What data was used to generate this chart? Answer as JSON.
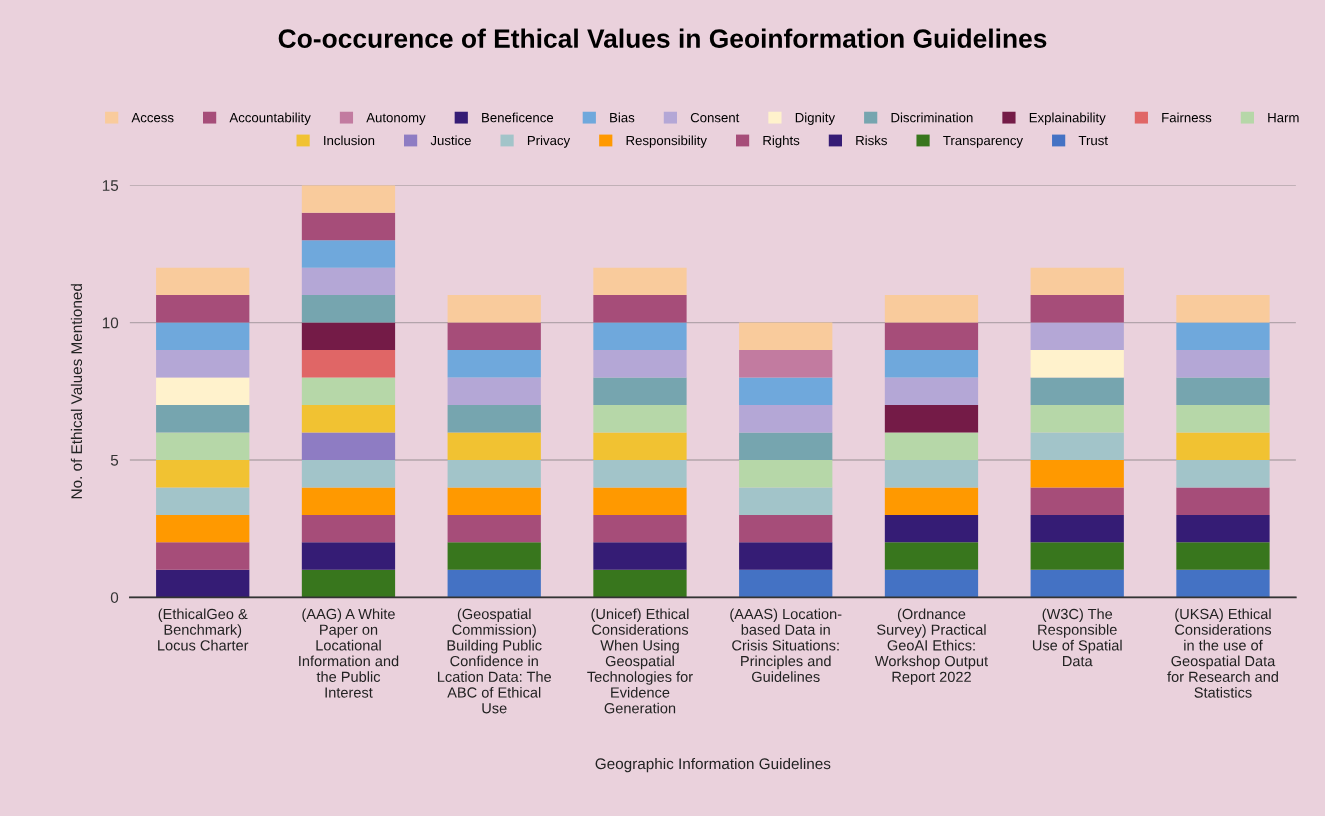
{
  "chart_data": {
    "type": "bar",
    "title": "Co-occurence of Ethical Values in Geoinformation Guidelines",
    "xlabel": "Geographic Information Guidelines",
    "ylabel": "No. of Ethical Values Mentioned",
    "categories": [
      "(EthicalGeo &\nBenchmark)\nLocus Charter",
      "(AAG) A White\nPaper on\nLocational\nInformation and\nthe Public\nInterest",
      "(Geospatial\nCommission)\nBuilding Public\nConfidence in\nLcation Data: The\nABC of Ethical\nUse",
      "(Unicef) Ethical\nConsiderations\nWhen Using\nGeospatial\nTechnologies for\nEvidence\nGeneration",
      "(AAAS) Location-\nbased Data in\nCrisis Situations:\nPrinciples and\nGuidelines",
      "(Ordnance\nSurvey) Practical\nGeoAI Ethics:\nWorkshop Output\nReport 2022",
      "(W3C) The\nResponsible\nUse of Spatial\nData",
      "(UKSA) Ethical\nConsiderations\nin the use of\nGeospatial Data\nfor Research and\nStatistics"
    ],
    "stacked": true,
    "ylim": [
      0,
      15
    ],
    "yticks": [
      0,
      5,
      10,
      15
    ],
    "grid": "y",
    "legend": "top",
    "series": [
      {
        "name": "Trust",
        "color": "#4472c4",
        "values": [
          null,
          null,
          1,
          null,
          1,
          1,
          1,
          1
        ]
      },
      {
        "name": "Transparency",
        "color": "#38761d",
        "values": [
          null,
          1,
          1,
          1,
          null,
          1,
          1,
          1
        ]
      },
      {
        "name": "Risks",
        "color": "#351c75",
        "values": [
          1,
          1,
          null,
          1,
          1,
          1,
          1,
          1
        ]
      },
      {
        "name": "Rights",
        "color": "#a64d79",
        "values": [
          1,
          1,
          1,
          1,
          1,
          null,
          1,
          1
        ]
      },
      {
        "name": "Responsibility",
        "color": "#ff9900",
        "values": [
          1,
          1,
          1,
          1,
          null,
          1,
          1,
          null
        ]
      },
      {
        "name": "Privacy",
        "color": "#a2c4c9",
        "values": [
          1,
          1,
          1,
          1,
          1,
          1,
          1,
          1
        ]
      },
      {
        "name": "Justice",
        "color": "#8e7cc3",
        "values": [
          null,
          1,
          null,
          null,
          null,
          null,
          null,
          null
        ]
      },
      {
        "name": "Inclusion",
        "color": "#f1c232",
        "values": [
          1,
          1,
          1,
          1,
          null,
          null,
          null,
          1
        ]
      },
      {
        "name": "Harm",
        "color": "#b6d7a8",
        "values": [
          1,
          1,
          null,
          1,
          1,
          1,
          1,
          1
        ]
      },
      {
        "name": "Fairness",
        "color": "#e06666",
        "values": [
          null,
          1,
          null,
          null,
          null,
          null,
          null,
          null
        ]
      },
      {
        "name": "Explainability",
        "color": "#741b47",
        "values": [
          null,
          1,
          null,
          null,
          null,
          1,
          null,
          null
        ]
      },
      {
        "name": "Discrimination",
        "color": "#76a5af",
        "values": [
          1,
          1,
          1,
          1,
          1,
          null,
          1,
          1
        ]
      },
      {
        "name": "Dignity",
        "color": "#fff2cc",
        "values": [
          1,
          null,
          null,
          null,
          null,
          null,
          1,
          null
        ]
      },
      {
        "name": "Consent",
        "color": "#b4a7d6",
        "values": [
          1,
          1,
          1,
          1,
          1,
          1,
          1,
          1
        ]
      },
      {
        "name": "Bias",
        "color": "#6fa8dc",
        "values": [
          1,
          1,
          1,
          1,
          1,
          1,
          null,
          1
        ]
      },
      {
        "name": "Beneficence",
        "color": "#351c75",
        "values": [
          null,
          null,
          null,
          null,
          null,
          null,
          null,
          null
        ]
      },
      {
        "name": "Autonomy",
        "color": "#c27ba0",
        "values": [
          null,
          null,
          null,
          null,
          1,
          null,
          null,
          null
        ]
      },
      {
        "name": "Accountability",
        "color": "#a64d79",
        "values": [
          1,
          1,
          1,
          1,
          null,
          1,
          1,
          null
        ]
      },
      {
        "name": "Access",
        "color": "#f9cb9c",
        "values": [
          1,
          1,
          1,
          1,
          1,
          1,
          1,
          1
        ]
      }
    ]
  }
}
